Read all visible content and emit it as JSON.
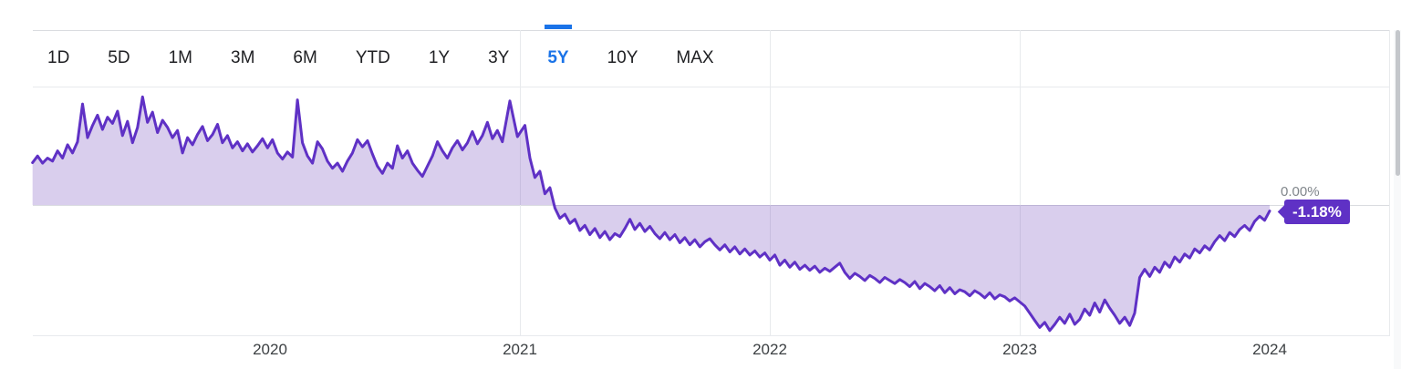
{
  "toolbar": {
    "tabs": [
      {
        "label": "1D",
        "selected": false
      },
      {
        "label": "5D",
        "selected": false
      },
      {
        "label": "1M",
        "selected": false
      },
      {
        "label": "3M",
        "selected": false
      },
      {
        "label": "6M",
        "selected": false
      },
      {
        "label": "YTD",
        "selected": false
      },
      {
        "label": "1Y",
        "selected": false
      },
      {
        "label": "3Y",
        "selected": false
      },
      {
        "label": "5Y",
        "selected": true
      },
      {
        "label": "10Y",
        "selected": false
      },
      {
        "label": "MAX",
        "selected": false
      }
    ]
  },
  "chart_data": {
    "type": "area",
    "unit": "%",
    "x_tick_labels": [
      "2020",
      "2021",
      "2022",
      "2023",
      "2024"
    ],
    "grid_years": [
      2021,
      2022,
      2023
    ],
    "baseline_value": 0,
    "baseline_label": "0.00%",
    "current_value_label": "-1.18%",
    "xlim": [
      2019.05,
      2024.0
    ],
    "ylim": [
      -25.5,
      34.5
    ],
    "legend": "none",
    "colors": {
      "line": "#5f31c5",
      "fill": "#673ab7",
      "badge": "#5f31c5",
      "tab_selected": "#1a73e8"
    },
    "series": [
      {
        "name": "percent-change-5y",
        "points": [
          [
            2019.05,
            8.3
          ],
          [
            2019.07,
            9.6
          ],
          [
            2019.09,
            8.2
          ],
          [
            2019.11,
            9.2
          ],
          [
            2019.13,
            8.6
          ],
          [
            2019.15,
            10.6
          ],
          [
            2019.17,
            9.2
          ],
          [
            2019.19,
            11.8
          ],
          [
            2019.21,
            10.2
          ],
          [
            2019.23,
            12.4
          ],
          [
            2019.25,
            19.8
          ],
          [
            2019.27,
            13.2
          ],
          [
            2019.29,
            15.6
          ],
          [
            2019.31,
            17.6
          ],
          [
            2019.33,
            14.8
          ],
          [
            2019.35,
            17.2
          ],
          [
            2019.37,
            16.0
          ],
          [
            2019.39,
            18.4
          ],
          [
            2019.41,
            13.6
          ],
          [
            2019.43,
            16.4
          ],
          [
            2019.45,
            12.2
          ],
          [
            2019.47,
            15.2
          ],
          [
            2019.49,
            21.2
          ],
          [
            2019.51,
            16.2
          ],
          [
            2019.53,
            18.2
          ],
          [
            2019.55,
            14.2
          ],
          [
            2019.57,
            16.6
          ],
          [
            2019.59,
            15.2
          ],
          [
            2019.61,
            13.2
          ],
          [
            2019.63,
            14.6
          ],
          [
            2019.65,
            10.2
          ],
          [
            2019.67,
            13.2
          ],
          [
            2019.69,
            11.8
          ],
          [
            2019.71,
            13.8
          ],
          [
            2019.73,
            15.4
          ],
          [
            2019.75,
            12.6
          ],
          [
            2019.77,
            13.8
          ],
          [
            2019.79,
            15.8
          ],
          [
            2019.81,
            12.2
          ],
          [
            2019.83,
            13.6
          ],
          [
            2019.85,
            11.2
          ],
          [
            2019.87,
            12.4
          ],
          [
            2019.89,
            10.6
          ],
          [
            2019.91,
            12.0
          ],
          [
            2019.93,
            10.4
          ],
          [
            2019.95,
            11.6
          ],
          [
            2019.97,
            13.0
          ],
          [
            2019.99,
            11.2
          ],
          [
            2020.01,
            12.8
          ],
          [
            2020.03,
            10.2
          ],
          [
            2020.05,
            9.0
          ],
          [
            2020.07,
            10.4
          ],
          [
            2020.09,
            9.4
          ],
          [
            2020.11,
            20.6
          ],
          [
            2020.13,
            12.2
          ],
          [
            2020.15,
            9.6
          ],
          [
            2020.17,
            8.2
          ],
          [
            2020.19,
            12.4
          ],
          [
            2020.21,
            11.0
          ],
          [
            2020.23,
            8.6
          ],
          [
            2020.25,
            7.2
          ],
          [
            2020.27,
            8.2
          ],
          [
            2020.29,
            6.6
          ],
          [
            2020.31,
            8.6
          ],
          [
            2020.33,
            10.2
          ],
          [
            2020.35,
            12.8
          ],
          [
            2020.37,
            11.4
          ],
          [
            2020.39,
            12.6
          ],
          [
            2020.41,
            10.0
          ],
          [
            2020.43,
            7.6
          ],
          [
            2020.45,
            6.2
          ],
          [
            2020.47,
            8.2
          ],
          [
            2020.49,
            7.2
          ],
          [
            2020.51,
            11.6
          ],
          [
            2020.53,
            9.2
          ],
          [
            2020.55,
            10.6
          ],
          [
            2020.57,
            8.2
          ],
          [
            2020.59,
            6.8
          ],
          [
            2020.61,
            5.6
          ],
          [
            2020.63,
            7.6
          ],
          [
            2020.65,
            9.6
          ],
          [
            2020.67,
            12.4
          ],
          [
            2020.69,
            10.6
          ],
          [
            2020.71,
            9.2
          ],
          [
            2020.73,
            11.2
          ],
          [
            2020.75,
            12.6
          ],
          [
            2020.77,
            10.8
          ],
          [
            2020.79,
            12.2
          ],
          [
            2020.81,
            14.4
          ],
          [
            2020.83,
            12.0
          ],
          [
            2020.85,
            13.6
          ],
          [
            2020.87,
            16.2
          ],
          [
            2020.89,
            13.0
          ],
          [
            2020.91,
            14.6
          ],
          [
            2020.93,
            12.4
          ],
          [
            2020.96,
            20.4
          ],
          [
            2020.99,
            13.4
          ],
          [
            2021.02,
            15.6
          ],
          [
            2021.04,
            9.2
          ],
          [
            2021.06,
            5.4
          ],
          [
            2021.08,
            6.6
          ],
          [
            2021.1,
            2.2
          ],
          [
            2021.12,
            3.4
          ],
          [
            2021.14,
            -0.6
          ],
          [
            2021.16,
            -2.6
          ],
          [
            2021.18,
            -1.8
          ],
          [
            2021.2,
            -3.6
          ],
          [
            2021.22,
            -2.8
          ],
          [
            2021.24,
            -5.0
          ],
          [
            2021.26,
            -4.0
          ],
          [
            2021.28,
            -5.8
          ],
          [
            2021.3,
            -4.6
          ],
          [
            2021.32,
            -6.4
          ],
          [
            2021.34,
            -5.2
          ],
          [
            2021.36,
            -6.8
          ],
          [
            2021.38,
            -5.6
          ],
          [
            2021.4,
            -6.2
          ],
          [
            2021.42,
            -4.6
          ],
          [
            2021.44,
            -2.8
          ],
          [
            2021.46,
            -4.8
          ],
          [
            2021.48,
            -3.6
          ],
          [
            2021.5,
            -5.2
          ],
          [
            2021.52,
            -4.2
          ],
          [
            2021.54,
            -5.6
          ],
          [
            2021.56,
            -6.6
          ],
          [
            2021.58,
            -5.4
          ],
          [
            2021.6,
            -6.8
          ],
          [
            2021.62,
            -5.8
          ],
          [
            2021.64,
            -7.4
          ],
          [
            2021.66,
            -6.4
          ],
          [
            2021.68,
            -7.8
          ],
          [
            2021.7,
            -6.8
          ],
          [
            2021.72,
            -8.2
          ],
          [
            2021.74,
            -7.2
          ],
          [
            2021.76,
            -6.6
          ],
          [
            2021.78,
            -7.8
          ],
          [
            2021.8,
            -8.8
          ],
          [
            2021.82,
            -7.8
          ],
          [
            2021.84,
            -9.2
          ],
          [
            2021.86,
            -8.2
          ],
          [
            2021.88,
            -9.6
          ],
          [
            2021.9,
            -8.6
          ],
          [
            2021.92,
            -9.8
          ],
          [
            2021.94,
            -9.0
          ],
          [
            2021.96,
            -10.2
          ],
          [
            2021.98,
            -9.4
          ],
          [
            2022.0,
            -10.8
          ],
          [
            2022.02,
            -9.8
          ],
          [
            2022.04,
            -11.8
          ],
          [
            2022.06,
            -10.8
          ],
          [
            2022.08,
            -12.2
          ],
          [
            2022.1,
            -11.2
          ],
          [
            2022.12,
            -12.6
          ],
          [
            2022.14,
            -11.8
          ],
          [
            2022.16,
            -12.8
          ],
          [
            2022.18,
            -12.0
          ],
          [
            2022.2,
            -13.2
          ],
          [
            2022.22,
            -12.4
          ],
          [
            2022.24,
            -13.0
          ],
          [
            2022.26,
            -12.2
          ],
          [
            2022.28,
            -11.4
          ],
          [
            2022.3,
            -13.2
          ],
          [
            2022.32,
            -14.4
          ],
          [
            2022.34,
            -13.4
          ],
          [
            2022.36,
            -14.0
          ],
          [
            2022.38,
            -14.8
          ],
          [
            2022.4,
            -13.8
          ],
          [
            2022.42,
            -14.4
          ],
          [
            2022.44,
            -15.2
          ],
          [
            2022.46,
            -14.2
          ],
          [
            2022.48,
            -14.8
          ],
          [
            2022.5,
            -15.4
          ],
          [
            2022.52,
            -14.6
          ],
          [
            2022.54,
            -15.2
          ],
          [
            2022.56,
            -16.0
          ],
          [
            2022.58,
            -15.0
          ],
          [
            2022.6,
            -16.4
          ],
          [
            2022.62,
            -15.4
          ],
          [
            2022.64,
            -16.0
          ],
          [
            2022.66,
            -16.8
          ],
          [
            2022.68,
            -15.8
          ],
          [
            2022.7,
            -17.2
          ],
          [
            2022.72,
            -16.2
          ],
          [
            2022.74,
            -17.4
          ],
          [
            2022.76,
            -16.6
          ],
          [
            2022.78,
            -17.0
          ],
          [
            2022.8,
            -17.8
          ],
          [
            2022.82,
            -16.8
          ],
          [
            2022.84,
            -17.4
          ],
          [
            2022.86,
            -18.2
          ],
          [
            2022.88,
            -17.2
          ],
          [
            2022.9,
            -18.4
          ],
          [
            2022.92,
            -17.6
          ],
          [
            2022.94,
            -18.0
          ],
          [
            2022.96,
            -18.8
          ],
          [
            2022.98,
            -18.2
          ],
          [
            2023.0,
            -19.0
          ],
          [
            2023.02,
            -19.8
          ],
          [
            2023.04,
            -21.2
          ],
          [
            2023.06,
            -22.6
          ],
          [
            2023.08,
            -24.0
          ],
          [
            2023.1,
            -23.0
          ],
          [
            2023.12,
            -24.6
          ],
          [
            2023.14,
            -23.4
          ],
          [
            2023.16,
            -22.0
          ],
          [
            2023.18,
            -23.2
          ],
          [
            2023.2,
            -21.4
          ],
          [
            2023.22,
            -23.4
          ],
          [
            2023.24,
            -22.4
          ],
          [
            2023.26,
            -20.4
          ],
          [
            2023.28,
            -21.6
          ],
          [
            2023.3,
            -19.2
          ],
          [
            2023.32,
            -21.0
          ],
          [
            2023.34,
            -18.6
          ],
          [
            2023.36,
            -20.2
          ],
          [
            2023.38,
            -21.6
          ],
          [
            2023.4,
            -23.2
          ],
          [
            2023.42,
            -22.0
          ],
          [
            2023.44,
            -23.6
          ],
          [
            2023.46,
            -21.2
          ],
          [
            2023.48,
            -14.2
          ],
          [
            2023.5,
            -12.6
          ],
          [
            2023.52,
            -14.0
          ],
          [
            2023.54,
            -12.2
          ],
          [
            2023.56,
            -13.2
          ],
          [
            2023.58,
            -11.2
          ],
          [
            2023.6,
            -12.2
          ],
          [
            2023.62,
            -10.2
          ],
          [
            2023.64,
            -11.2
          ],
          [
            2023.66,
            -9.6
          ],
          [
            2023.68,
            -10.4
          ],
          [
            2023.7,
            -8.6
          ],
          [
            2023.72,
            -9.4
          ],
          [
            2023.74,
            -8.0
          ],
          [
            2023.76,
            -8.8
          ],
          [
            2023.78,
            -7.2
          ],
          [
            2023.8,
            -6.0
          ],
          [
            2023.82,
            -7.0
          ],
          [
            2023.84,
            -5.4
          ],
          [
            2023.86,
            -6.2
          ],
          [
            2023.88,
            -4.8
          ],
          [
            2023.9,
            -4.0
          ],
          [
            2023.92,
            -5.0
          ],
          [
            2023.94,
            -3.2
          ],
          [
            2023.96,
            -2.2
          ],
          [
            2023.98,
            -3.0
          ],
          [
            2024.0,
            -1.18
          ]
        ]
      }
    ]
  }
}
